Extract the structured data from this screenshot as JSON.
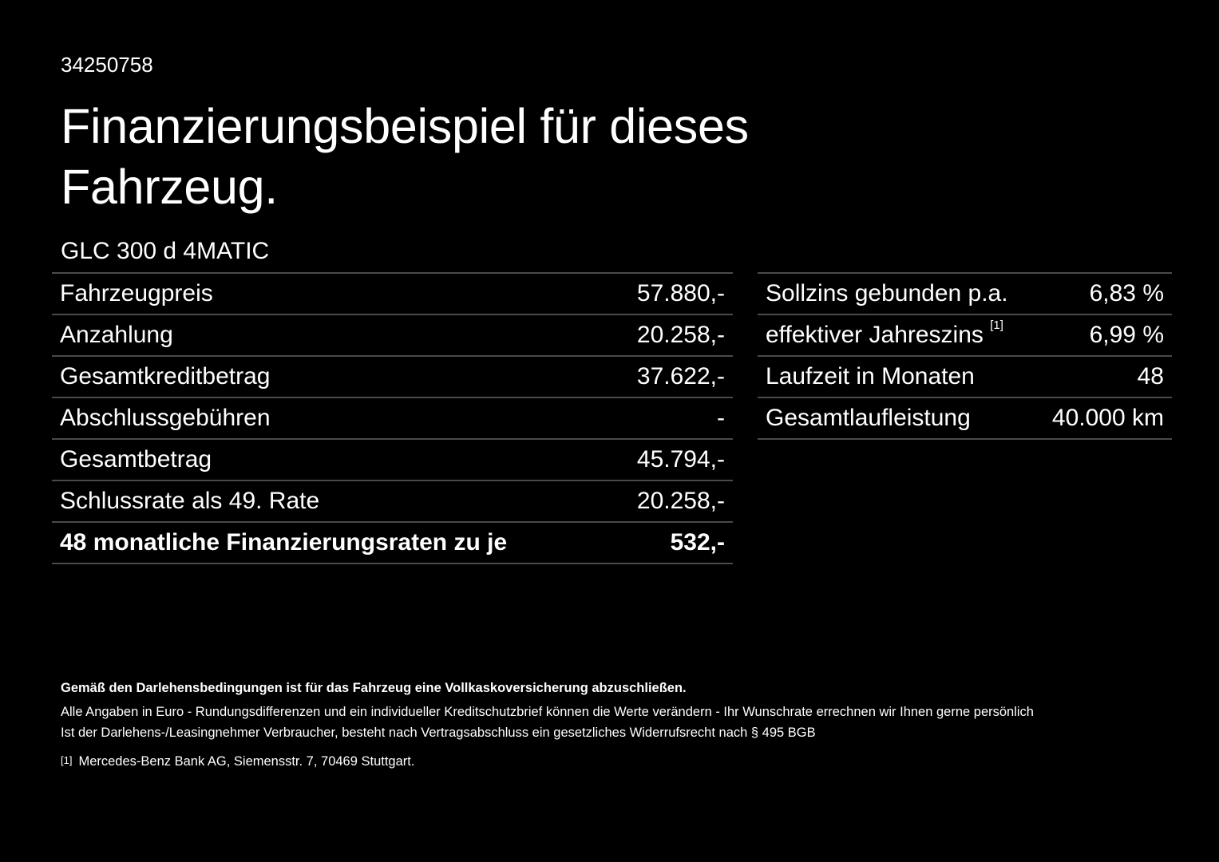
{
  "vehicle_id": "34250758",
  "title": "Finanzierungsbeispiel für dieses Fahrzeug.",
  "model": "GLC 300 d 4MATIC",
  "left_table": [
    {
      "label": "Fahrzeugpreis",
      "value": "57.880,-"
    },
    {
      "label": "Anzahlung",
      "value": "20.258,-"
    },
    {
      "label": "Gesamtkreditbetrag",
      "value": "37.622,-"
    },
    {
      "label": "Abschlussgebühren",
      "value": "-"
    },
    {
      "label": "Gesamtbetrag",
      "value": "45.794,-"
    },
    {
      "label": "Schlussrate als 49. Rate",
      "value": "20.258,-"
    },
    {
      "label": "48 monatliche Finanzierungsraten zu je",
      "value": "532,-"
    }
  ],
  "right_table": [
    {
      "label": "Sollzins gebunden p.a.",
      "value": "6,83 %"
    },
    {
      "label": "effektiver Jahreszins",
      "footnote": "[1]",
      "value": "6,99 %"
    },
    {
      "label": "Laufzeit in Monaten",
      "value": "48"
    },
    {
      "label": "Gesamtlaufleistung",
      "value": "40.000 km"
    }
  ],
  "footer": {
    "insurance_note": "Gemäß den Darlehensbedingungen ist für das Fahrzeug eine Vollkaskoversicherung abzuschließen.",
    "euro_note": "Alle Angaben in Euro - Rundungsdifferenzen und ein individueller Kreditschutzbrief können die Werte verändern - Ihr Wunschrate errechnen wir Ihnen gerne persönlich",
    "withdrawal_note": "Ist der Darlehens-/Leasingnehmer Verbraucher, besteht nach Vertragsabschluss ein gesetzliches Widerrufsrecht nach § 495 BGB",
    "footnote_marker": "[1]",
    "footnote_text": "Mercedes-Benz Bank AG, Siemensstr. 7, 70469 Stuttgart."
  }
}
